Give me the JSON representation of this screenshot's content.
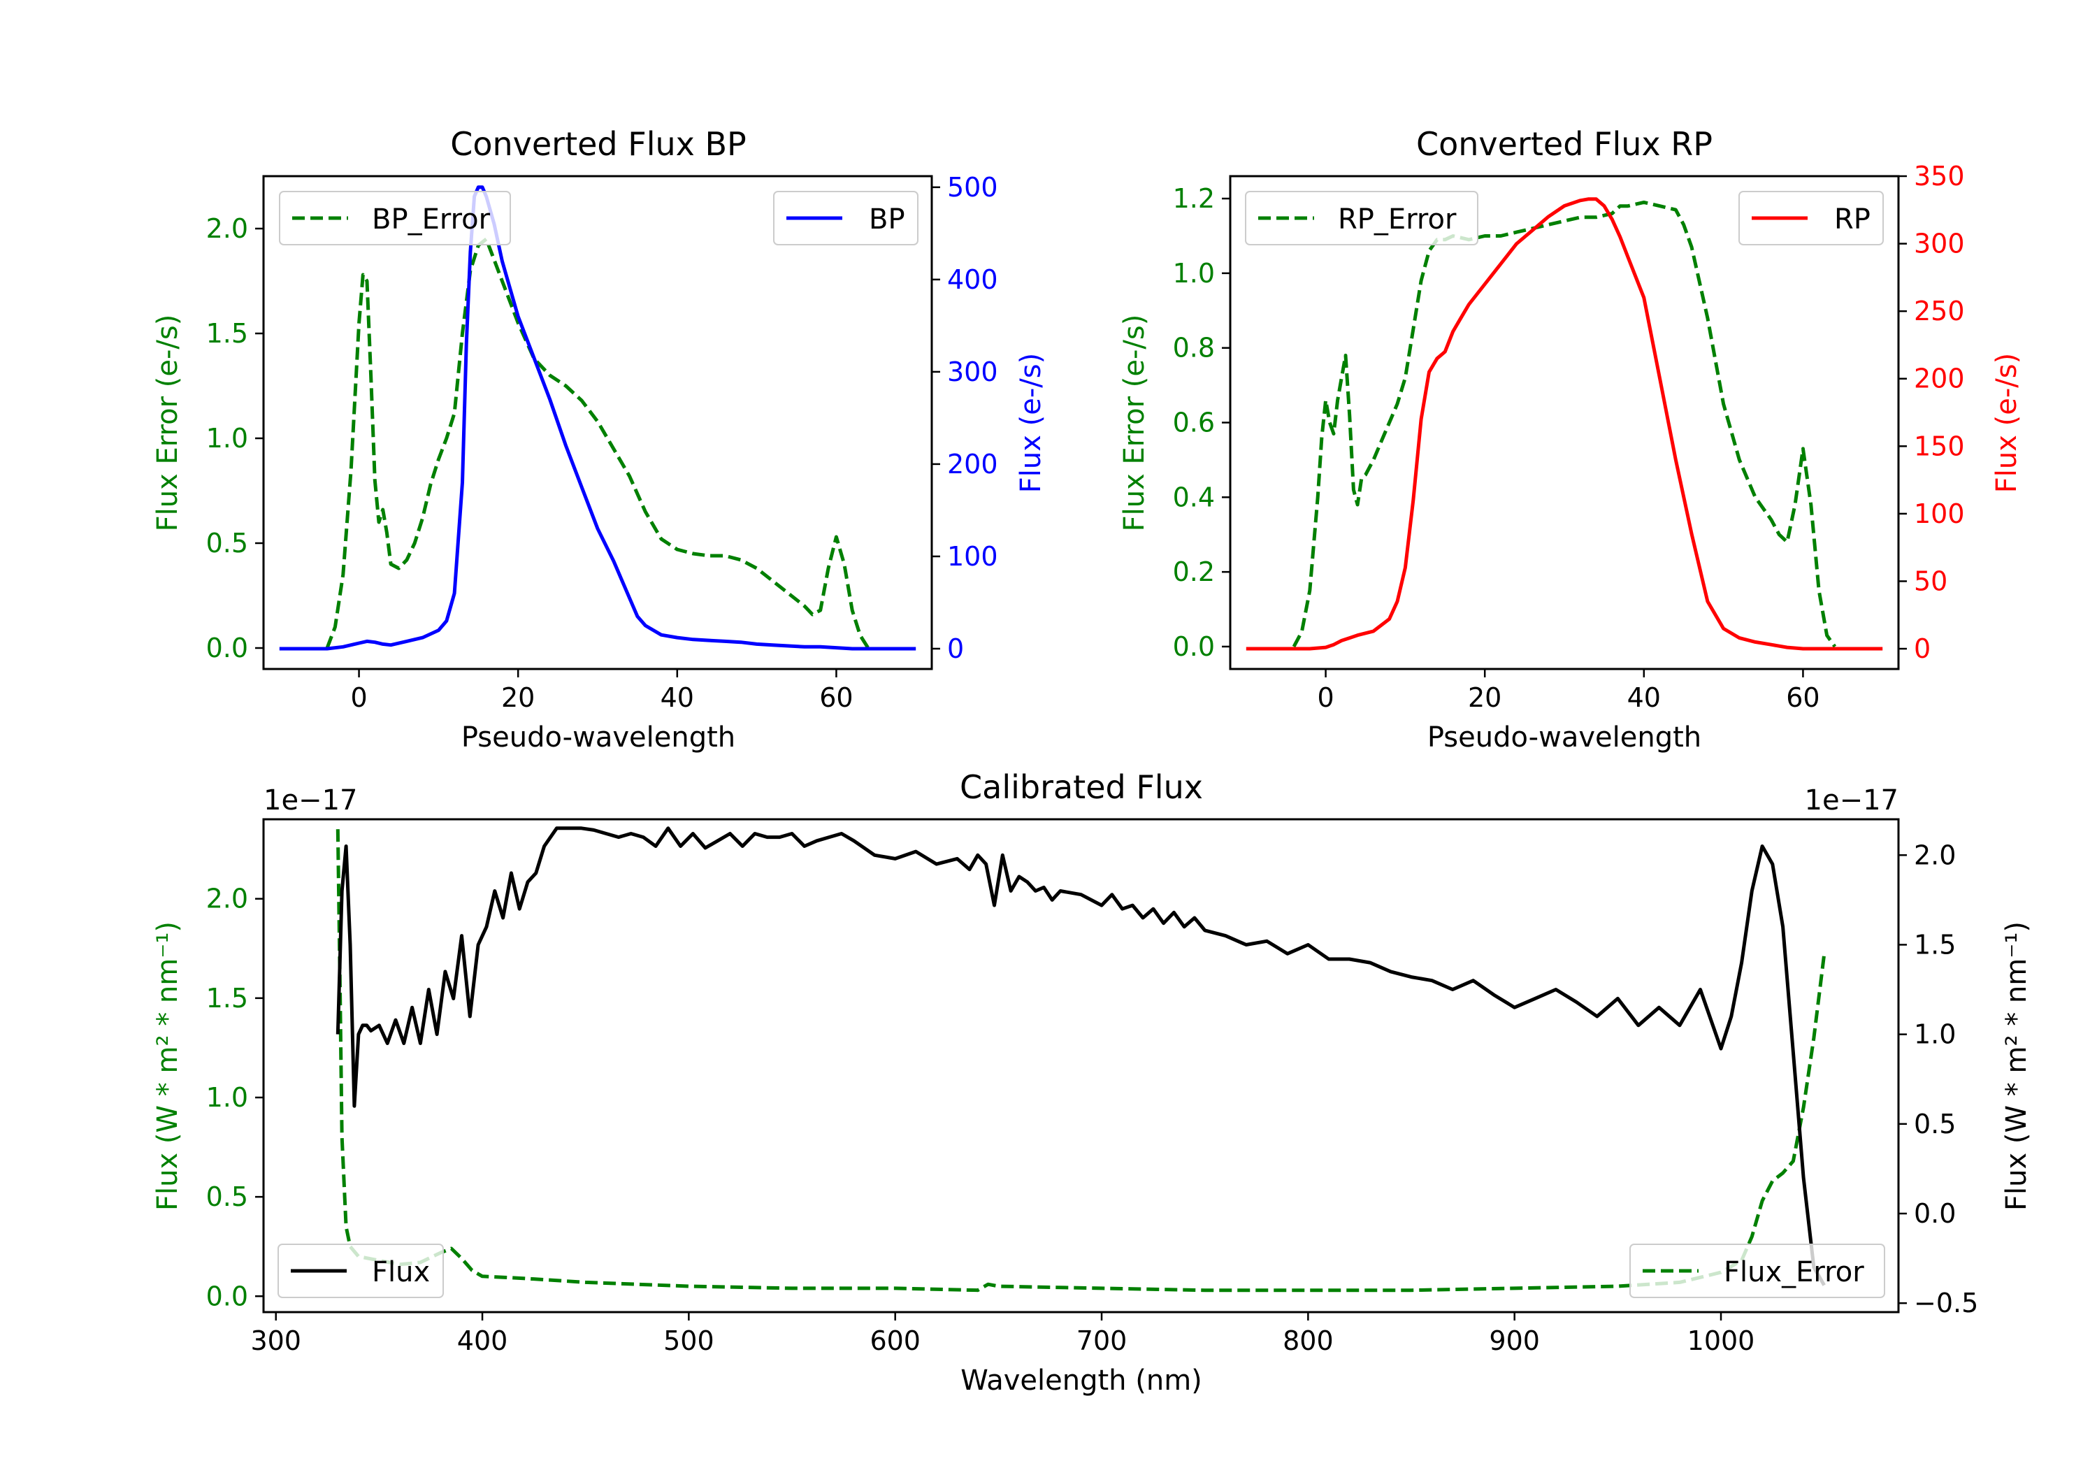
{
  "figure_colors": {
    "green": "#008000",
    "blue": "#0000ff",
    "red": "#ff0000",
    "black": "#000000"
  },
  "chart_data": [
    {
      "id": "bp",
      "type": "line",
      "title": "Converted Flux BP",
      "xlabel": "Pseudo-wavelength",
      "xlim": [
        -12,
        72
      ],
      "xticks": [
        0,
        20,
        40,
        60
      ],
      "left_axis": {
        "label": "Flux Error (e-/s)",
        "color": "#008000",
        "lim": [
          -0.1,
          2.25
        ],
        "ticks": [
          0.0,
          0.5,
          1.0,
          1.5,
          2.0
        ],
        "tick_labels": [
          "0.0",
          "0.5",
          "1.0",
          "1.5",
          "2.0"
        ]
      },
      "right_axis": {
        "label": "Flux (e-/s)",
        "color": "#0000ff",
        "lim": [
          -22,
          512
        ],
        "ticks": [
          0,
          100,
          200,
          300,
          400,
          500
        ],
        "tick_labels": [
          "0",
          "100",
          "200",
          "300",
          "400",
          "500"
        ]
      },
      "series": [
        {
          "name": "BP_Error",
          "axis": "left",
          "style": "dashed",
          "color": "#008000",
          "x": [
            -4,
            -3,
            -2,
            -1,
            0,
            0.5,
            1,
            1.5,
            2,
            2.5,
            3,
            3.5,
            4,
            5,
            6,
            7,
            8,
            9,
            10,
            11,
            12,
            13,
            14,
            15,
            16,
            18,
            20,
            22,
            24,
            26,
            28,
            30,
            32,
            34,
            36,
            38,
            40,
            42,
            44,
            46,
            48,
            50,
            52,
            54,
            56,
            57,
            58,
            59,
            60,
            61,
            62,
            63,
            64
          ],
          "y": [
            0.0,
            0.1,
            0.35,
            0.85,
            1.55,
            1.78,
            1.75,
            1.3,
            0.8,
            0.6,
            0.66,
            0.55,
            0.4,
            0.38,
            0.42,
            0.5,
            0.62,
            0.78,
            0.9,
            1.0,
            1.12,
            1.5,
            1.8,
            1.92,
            1.95,
            1.75,
            1.55,
            1.38,
            1.3,
            1.25,
            1.18,
            1.08,
            0.95,
            0.82,
            0.65,
            0.52,
            0.47,
            0.45,
            0.44,
            0.44,
            0.42,
            0.38,
            0.32,
            0.26,
            0.2,
            0.16,
            0.18,
            0.38,
            0.53,
            0.4,
            0.18,
            0.06,
            0.0
          ]
        },
        {
          "name": "BP",
          "axis": "right",
          "style": "solid",
          "color": "#0000ff",
          "x": [
            -10,
            -6,
            -4,
            -2,
            0,
            1,
            2,
            3,
            4,
            6,
            8,
            10,
            11,
            12,
            13,
            13.5,
            14,
            14.5,
            15,
            15.5,
            16,
            17,
            18,
            20,
            22,
            24,
            26,
            28,
            30,
            32,
            34,
            35,
            36,
            38,
            40,
            42,
            44,
            46,
            48,
            50,
            52,
            54,
            56,
            58,
            60,
            62,
            64,
            66,
            68,
            70
          ],
          "y": [
            0,
            0,
            0,
            2,
            6,
            8,
            7,
            5,
            4,
            8,
            12,
            20,
            30,
            60,
            180,
            330,
            430,
            490,
            500,
            500,
            490,
            460,
            420,
            360,
            315,
            270,
            220,
            175,
            130,
            95,
            55,
            35,
            25,
            15,
            12,
            10,
            9,
            8,
            7,
            5,
            4,
            3,
            2,
            2,
            1,
            0,
            0,
            0,
            0,
            0
          ]
        }
      ],
      "legend_left": {
        "label": "BP_Error",
        "loc": "upper left"
      },
      "legend_right": {
        "label": "BP",
        "loc": "upper right"
      }
    },
    {
      "id": "rp",
      "type": "line",
      "title": "Converted Flux RP",
      "xlabel": "Pseudo-wavelength",
      "xlim": [
        -12,
        72
      ],
      "xticks": [
        0,
        20,
        40,
        60
      ],
      "left_axis": {
        "label": "Flux Error (e-/s)",
        "color": "#008000",
        "lim": [
          -0.06,
          1.26
        ],
        "ticks": [
          0.0,
          0.2,
          0.4,
          0.6,
          0.8,
          1.0,
          1.2
        ],
        "tick_labels": [
          "0.0",
          "0.2",
          "0.4",
          "0.6",
          "0.8",
          "1.0",
          "1.2"
        ]
      },
      "right_axis": {
        "label": "Flux (e-/s)",
        "color": "#ff0000",
        "lim": [
          -15,
          350
        ],
        "ticks": [
          0,
          50,
          100,
          150,
          200,
          250,
          300,
          350
        ],
        "tick_labels": [
          "0",
          "50",
          "100",
          "150",
          "200",
          "250",
          "300",
          "350"
        ]
      },
      "series": [
        {
          "name": "RP_Error",
          "axis": "left",
          "style": "dashed",
          "color": "#008000",
          "x": [
            -4,
            -3,
            -2,
            -1,
            -0.5,
            0,
            0.5,
            1,
            1.5,
            2,
            2.5,
            3,
            3.5,
            4,
            4.5,
            5,
            6,
            7,
            8,
            9,
            10,
            11,
            12,
            13,
            14,
            15,
            16,
            18,
            20,
            22,
            24,
            26,
            28,
            30,
            32,
            34,
            36,
            37,
            38,
            40,
            42,
            44,
            45,
            46,
            48,
            50,
            52,
            54,
            56,
            57,
            58,
            59,
            60,
            61,
            62,
            63,
            64
          ],
          "y": [
            0.0,
            0.04,
            0.15,
            0.4,
            0.56,
            0.66,
            0.6,
            0.57,
            0.66,
            0.72,
            0.78,
            0.62,
            0.42,
            0.38,
            0.45,
            0.46,
            0.5,
            0.55,
            0.6,
            0.65,
            0.72,
            0.85,
            0.98,
            1.06,
            1.09,
            1.09,
            1.1,
            1.09,
            1.1,
            1.1,
            1.11,
            1.12,
            1.13,
            1.14,
            1.15,
            1.15,
            1.16,
            1.18,
            1.18,
            1.19,
            1.18,
            1.17,
            1.13,
            1.07,
            0.88,
            0.65,
            0.5,
            0.4,
            0.34,
            0.3,
            0.28,
            0.38,
            0.53,
            0.38,
            0.15,
            0.03,
            0.0
          ]
        },
        {
          "name": "RP",
          "axis": "right",
          "style": "solid",
          "color": "#ff0000",
          "x": [
            -10,
            -6,
            -2,
            0,
            1,
            2,
            3,
            4,
            6,
            8,
            9,
            10,
            11,
            12,
            13,
            14,
            15,
            16,
            17,
            18,
            20,
            22,
            24,
            26,
            28,
            30,
            31,
            32,
            33,
            34,
            35,
            36,
            37,
            38,
            40,
            42,
            44,
            46,
            48,
            50,
            52,
            54,
            56,
            58,
            60,
            62,
            64,
            66,
            68,
            70
          ],
          "y": [
            0,
            0,
            0,
            1,
            3,
            6,
            8,
            10,
            13,
            22,
            35,
            60,
            110,
            170,
            205,
            215,
            220,
            235,
            245,
            255,
            270,
            285,
            300,
            310,
            320,
            328,
            330,
            332,
            333,
            333,
            328,
            318,
            305,
            290,
            260,
            200,
            140,
            85,
            35,
            15,
            8,
            5,
            3,
            1,
            0,
            0,
            0,
            0,
            0,
            0
          ]
        }
      ],
      "legend_left": {
        "label": "RP_Error",
        "loc": "upper left"
      },
      "legend_right": {
        "label": "RP",
        "loc": "upper right"
      }
    },
    {
      "id": "cal",
      "type": "line",
      "title": "Calibrated Flux",
      "xlabel": "Wavelength (nm)",
      "xlim": [
        294,
        1086
      ],
      "xticks": [
        300,
        400,
        500,
        600,
        700,
        800,
        900,
        1000
      ],
      "left_axis": {
        "label": "Flux (W * m² * nm⁻¹)",
        "color": "#008000",
        "offset_text": "1e−17",
        "lim": [
          -0.08,
          2.4
        ],
        "ticks": [
          0.0,
          0.5,
          1.0,
          1.5,
          2.0
        ],
        "tick_labels": [
          "0.0",
          "0.5",
          "1.0",
          "1.5",
          "2.0"
        ]
      },
      "right_axis": {
        "label": "Flux (W * m² * nm⁻¹)",
        "color": "#000000",
        "offset_text": "1e−17",
        "lim": [
          -0.55,
          2.2
        ],
        "ticks": [
          -0.5,
          0.0,
          0.5,
          1.0,
          1.5,
          2.0
        ],
        "tick_labels": [
          "−0.5",
          "0.0",
          "0.5",
          "1.0",
          "1.5",
          "2.0"
        ]
      },
      "series": [
        {
          "name": "Flux_Error",
          "axis": "left",
          "style": "dashed",
          "color": "#008000",
          "x": [
            330,
            331,
            332,
            334,
            336,
            340,
            350,
            360,
            370,
            380,
            385,
            390,
            395,
            400,
            420,
            450,
            500,
            550,
            600,
            640,
            645,
            650,
            700,
            750,
            800,
            850,
            900,
            950,
            980,
            1000,
            1010,
            1015,
            1020,
            1025,
            1030,
            1035,
            1040,
            1045,
            1050
          ],
          "y": [
            2.35,
            1.6,
            0.8,
            0.35,
            0.25,
            0.2,
            0.18,
            0.16,
            0.17,
            0.22,
            0.24,
            0.19,
            0.13,
            0.1,
            0.09,
            0.07,
            0.05,
            0.04,
            0.04,
            0.03,
            0.06,
            0.05,
            0.04,
            0.03,
            0.03,
            0.03,
            0.04,
            0.05,
            0.07,
            0.12,
            0.18,
            0.3,
            0.48,
            0.58,
            0.62,
            0.68,
            0.95,
            1.3,
            1.72
          ]
        },
        {
          "name": "Flux",
          "axis": "right",
          "style": "solid",
          "color": "#000000",
          "x": [
            330,
            332,
            334,
            336,
            338,
            340,
            342,
            344,
            346,
            350,
            354,
            358,
            362,
            366,
            370,
            374,
            378,
            382,
            386,
            390,
            394,
            398,
            402,
            406,
            410,
            414,
            418,
            422,
            426,
            430,
            436,
            442,
            448,
            454,
            460,
            466,
            472,
            478,
            484,
            490,
            496,
            502,
            508,
            514,
            520,
            526,
            532,
            538,
            544,
            550,
            556,
            562,
            568,
            574,
            580,
            590,
            600,
            610,
            620,
            630,
            636,
            640,
            644,
            648,
            652,
            656,
            660,
            664,
            668,
            672,
            676,
            680,
            690,
            700,
            705,
            710,
            715,
            720,
            725,
            730,
            735,
            740,
            745,
            750,
            760,
            770,
            780,
            790,
            800,
            810,
            820,
            830,
            840,
            850,
            860,
            870,
            880,
            890,
            900,
            910,
            920,
            930,
            940,
            950,
            960,
            970,
            980,
            990,
            1000,
            1005,
            1010,
            1015,
            1020,
            1025,
            1030,
            1035,
            1040,
            1045,
            1050
          ],
          "y": [
            1.0,
            1.8,
            2.05,
            1.5,
            0.6,
            1.0,
            1.05,
            1.05,
            1.02,
            1.05,
            0.95,
            1.08,
            0.95,
            1.15,
            0.95,
            1.25,
            1.0,
            1.35,
            1.2,
            1.55,
            1.1,
            1.5,
            1.6,
            1.8,
            1.65,
            1.9,
            1.7,
            1.85,
            1.9,
            2.05,
            2.15,
            2.15,
            2.15,
            2.14,
            2.12,
            2.1,
            2.12,
            2.1,
            2.05,
            2.15,
            2.05,
            2.12,
            2.04,
            2.08,
            2.12,
            2.05,
            2.12,
            2.1,
            2.1,
            2.12,
            2.05,
            2.08,
            2.1,
            2.12,
            2.08,
            2.0,
            1.98,
            2.02,
            1.95,
            1.98,
            1.92,
            2.0,
            1.95,
            1.72,
            2.0,
            1.8,
            1.88,
            1.85,
            1.8,
            1.82,
            1.75,
            1.8,
            1.78,
            1.72,
            1.78,
            1.7,
            1.72,
            1.65,
            1.7,
            1.62,
            1.68,
            1.6,
            1.65,
            1.58,
            1.55,
            1.5,
            1.52,
            1.45,
            1.5,
            1.42,
            1.42,
            1.4,
            1.35,
            1.32,
            1.3,
            1.25,
            1.3,
            1.22,
            1.15,
            1.2,
            1.25,
            1.18,
            1.1,
            1.2,
            1.05,
            1.15,
            1.05,
            1.25,
            0.92,
            1.1,
            1.4,
            1.8,
            2.05,
            1.95,
            1.6,
            0.9,
            0.2,
            -0.3,
            -0.4
          ]
        }
      ],
      "legend_left": {
        "label": "Flux",
        "loc": "lower left"
      },
      "legend_right": {
        "label": "Flux_Error",
        "loc": "lower right"
      }
    }
  ]
}
